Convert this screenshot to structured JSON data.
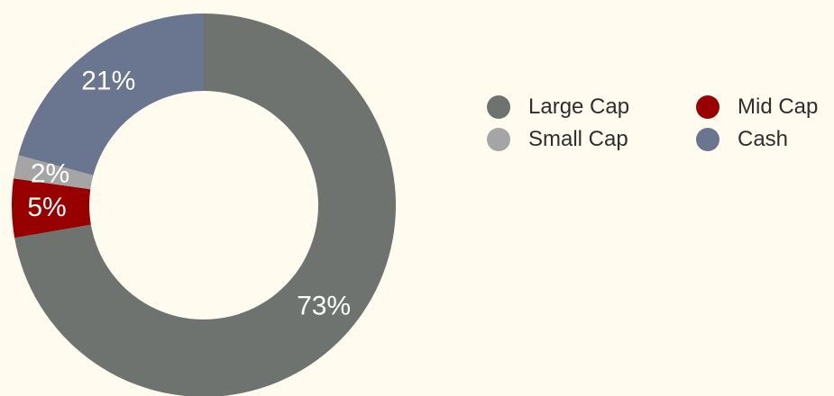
{
  "chart_data": {
    "type": "pie",
    "donut": true,
    "title": "",
    "categories": [
      "Large Cap",
      "Mid Cap",
      "Small Cap",
      "Cash"
    ],
    "values": [
      73,
      5,
      2,
      21
    ],
    "value_labels": [
      "73%",
      "5%",
      "2%",
      "21%"
    ],
    "colors": [
      "#6e736f",
      "#980000",
      "#a5a5a5",
      "#6a7590"
    ],
    "label_color": "#ffffff",
    "background": "#fffbef",
    "legend_position": "right",
    "legend": [
      {
        "label": "Large Cap",
        "color": "#6e736f"
      },
      {
        "label": "Mid Cap",
        "color": "#980000"
      },
      {
        "label": "Small Cap",
        "color": "#a5a5a5"
      },
      {
        "label": "Cash",
        "color": "#6a7590"
      }
    ]
  }
}
